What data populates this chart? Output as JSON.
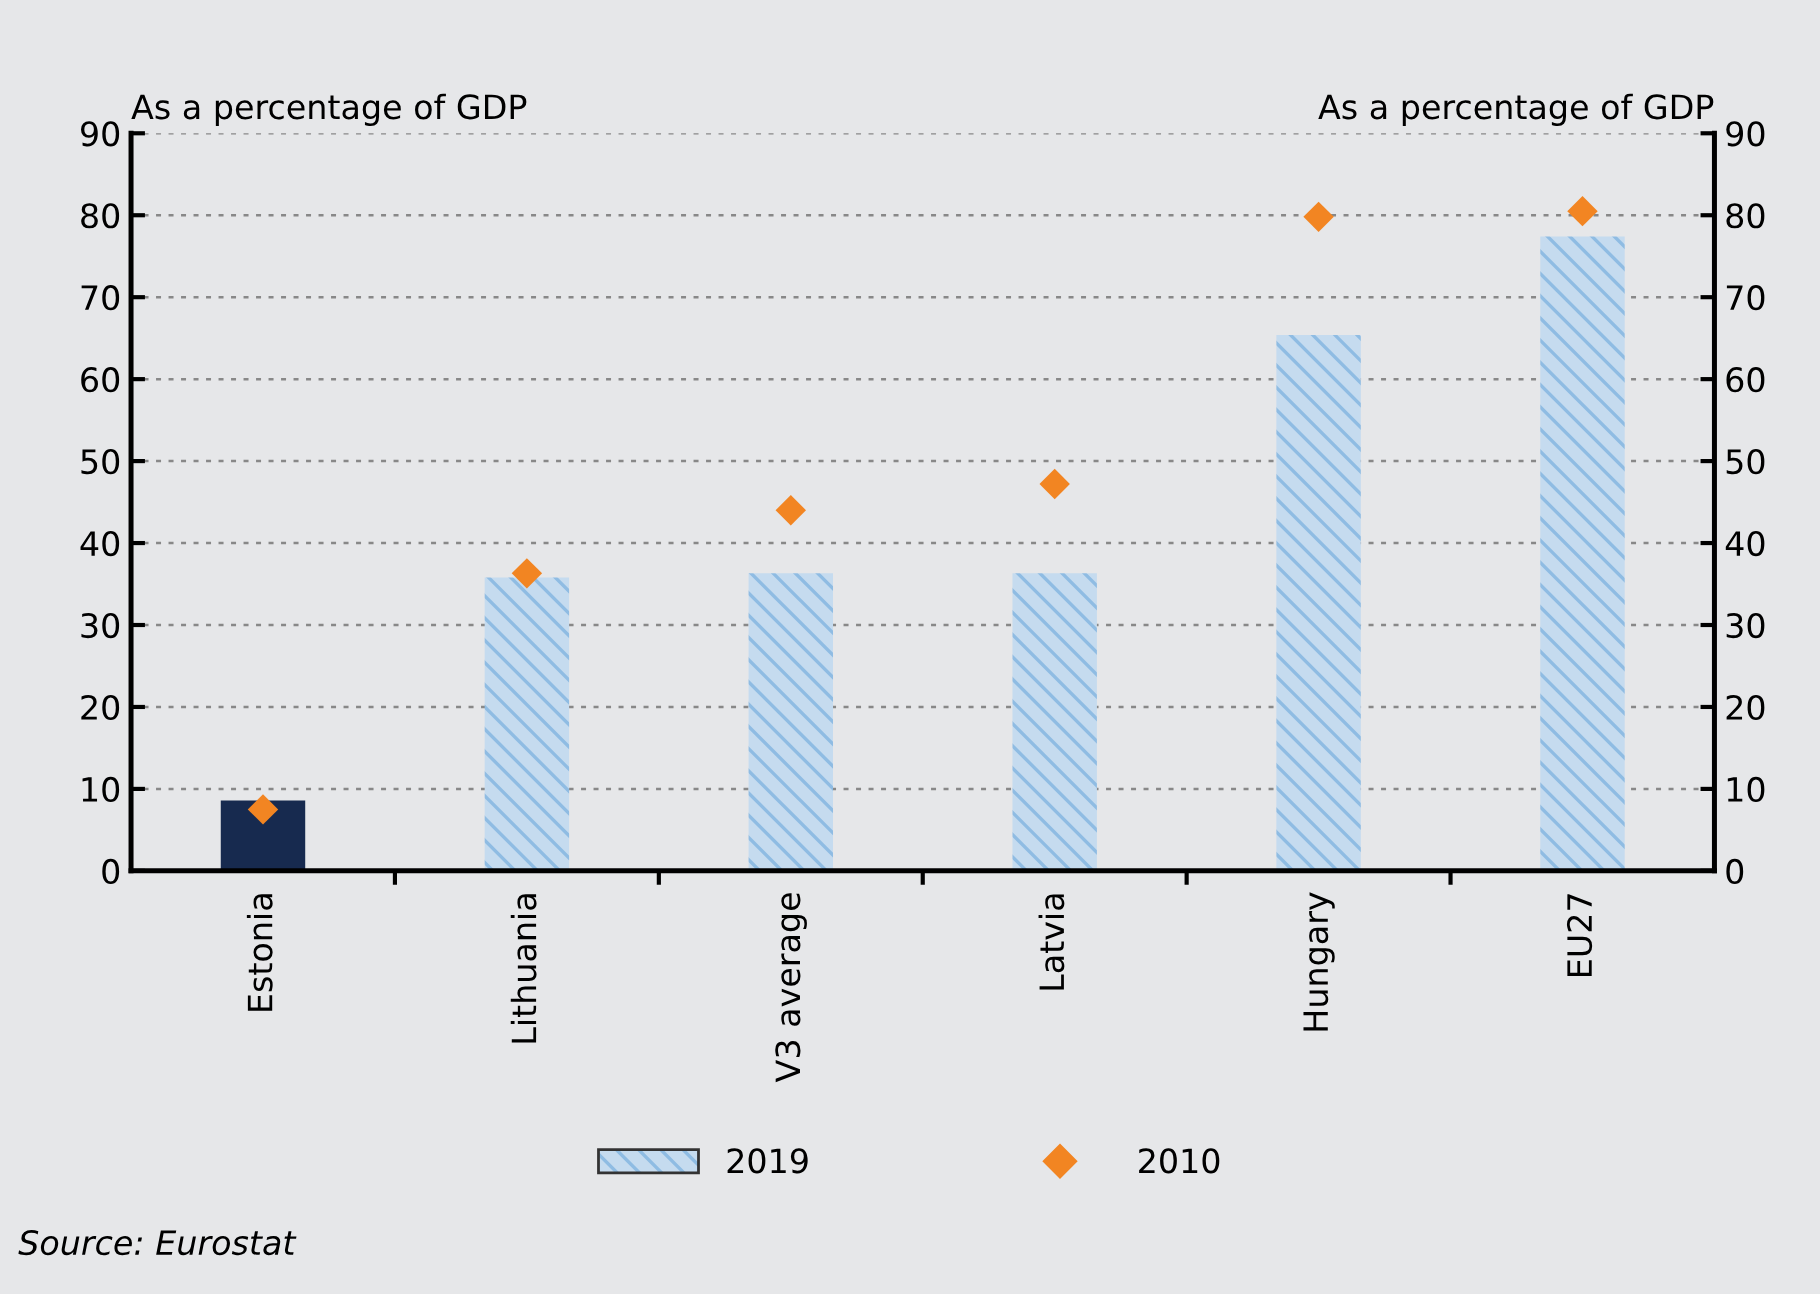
{
  "chart_data": {
    "type": "bar",
    "categories": [
      "Estonia",
      "Lithuania",
      "V3 average",
      "Latvia",
      "Hungary",
      "EU27"
    ],
    "ylabel": "As a percentage of GDP",
    "y2label": "As a percentage of GDP",
    "ylim": [
      0,
      90
    ],
    "yticks": [
      0,
      10,
      20,
      30,
      40,
      50,
      60,
      70,
      80,
      90
    ],
    "y2lim": [
      0,
      90
    ],
    "y2ticks": [
      0,
      10,
      20,
      30,
      40,
      50,
      60,
      70,
      80,
      90
    ],
    "series": [
      {
        "name": "2019",
        "type": "bar",
        "color": "#c5dbef",
        "colors": [
          "#172a4f",
          "#c5dbef",
          "#c5dbef",
          "#c5dbef",
          "#c5dbef",
          "#c5dbef"
        ],
        "values": [
          8.6,
          35.8,
          36.3,
          36.3,
          65.4,
          77.4
        ]
      },
      {
        "name": "2010",
        "type": "scatter",
        "color": "#f28522",
        "marker": "diamond",
        "values": [
          7.5,
          36.3,
          44.0,
          47.2,
          79.8,
          80.5
        ]
      }
    ],
    "grid": "y",
    "legend": "bottom",
    "annotations": [
      "Source: Eurostat"
    ]
  }
}
